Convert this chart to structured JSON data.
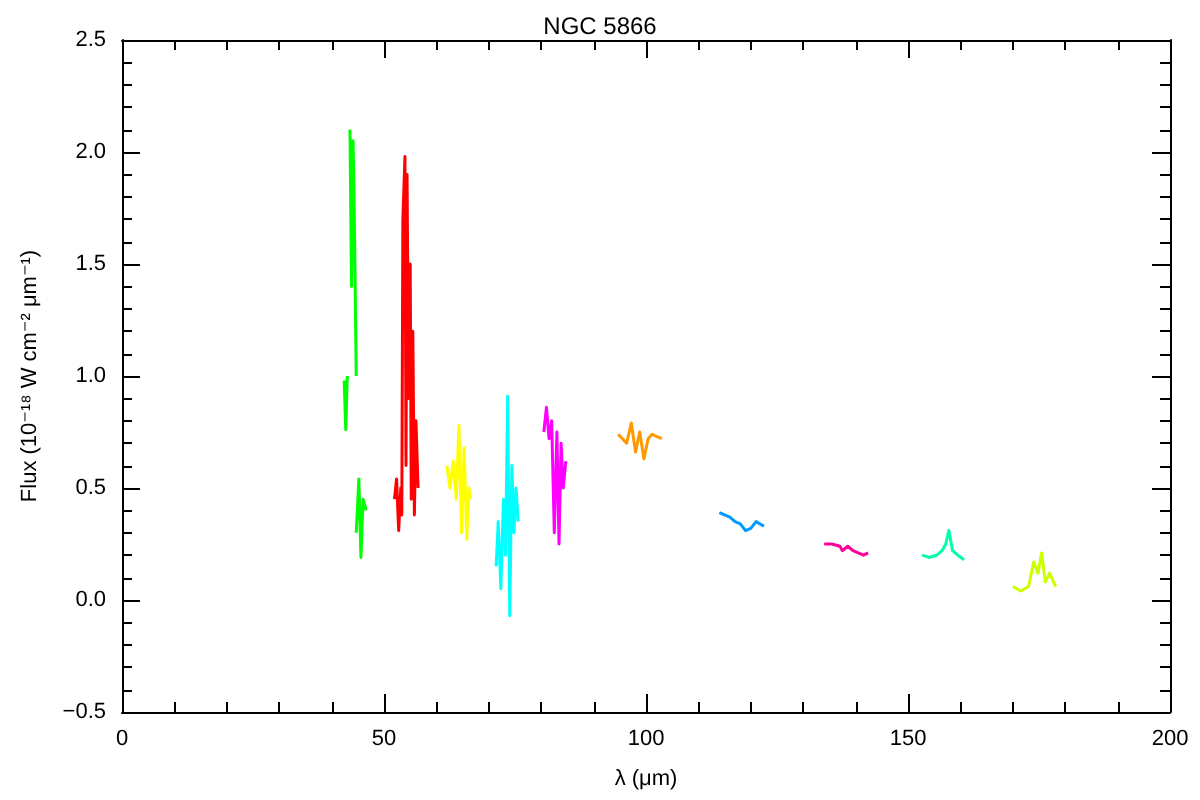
{
  "chart_data": {
    "type": "line",
    "title": "NGC 5866",
    "xlabel": "λ (μm)",
    "ylabel": "Flux (10⁻¹⁸ W cm⁻² μm⁻¹)",
    "xlim": [
      0,
      200
    ],
    "xticks": [
      0,
      {
        "value": 10,
        "label": null
      },
      {
        "value": 20,
        "label": null
      },
      {
        "value": 30,
        "label": null
      },
      {
        "value": 40,
        "label": null
      },
      50,
      {
        "value": 60,
        "label": null
      },
      {
        "value": 70,
        "label": null
      },
      {
        "value": 80,
        "label": null
      },
      {
        "value": 90,
        "label": null
      },
      100,
      {
        "value": 110,
        "label": null
      },
      {
        "value": 120,
        "label": null
      },
      {
        "value": 130,
        "label": null
      },
      {
        "value": 140,
        "label": null
      },
      150,
      {
        "value": 160,
        "label": null
      },
      {
        "value": 170,
        "label": null
      },
      {
        "value": 180,
        "label": null
      },
      {
        "value": 190,
        "label": null
      },
      200
    ],
    "ylim": [
      -0.5,
      2.5
    ],
    "yticks": [
      {
        "value": -0.5,
        "label": "−0.5"
      },
      {
        "value": -0.4,
        "label": null
      },
      {
        "value": -0.3,
        "label": null
      },
      {
        "value": -0.2,
        "label": null
      },
      {
        "value": -0.1,
        "label": null
      },
      {
        "value": 0,
        "label": "0.0"
      },
      {
        "value": 0.1,
        "label": null
      },
      {
        "value": 0.2,
        "label": null
      },
      {
        "value": 0.3,
        "label": null
      },
      {
        "value": 0.4,
        "label": null
      },
      {
        "value": 0.5,
        "label": "0.5"
      },
      {
        "value": 0.6,
        "label": null
      },
      {
        "value": 0.7,
        "label": null
      },
      {
        "value": 0.8,
        "label": null
      },
      {
        "value": 0.9,
        "label": null
      },
      {
        "value": 1,
        "label": "1.0"
      },
      {
        "value": 1.1,
        "label": null
      },
      {
        "value": 1.2,
        "label": null
      },
      {
        "value": 1.3,
        "label": null
      },
      {
        "value": 1.4,
        "label": null
      },
      {
        "value": 1.5,
        "label": "1.5"
      },
      {
        "value": 1.6,
        "label": null
      },
      {
        "value": 1.7,
        "label": null
      },
      {
        "value": 1.8,
        "label": null
      },
      {
        "value": 1.9,
        "label": null
      },
      {
        "value": 2,
        "label": "2.0"
      },
      {
        "value": 2.1,
        "label": null
      },
      {
        "value": 2.2,
        "label": null
      },
      {
        "value": 2.3,
        "label": null
      },
      {
        "value": 2.4,
        "label": null
      },
      {
        "value": 2.5,
        "label": "2.5"
      }
    ],
    "grid": false,
    "marker": "none",
    "line_style": "solid",
    "series": [
      {
        "color": "#00ff00",
        "x": [
          42.4,
          42.7,
          43.0
        ],
        "values": [
          0.98,
          0.76,
          1.0
        ]
      },
      {
        "color": "#00ff00",
        "x": [
          43.5,
          43.8,
          44.1,
          44.4,
          44.7
        ],
        "values": [
          2.1,
          1.4,
          2.05,
          1.6,
          1.0
        ]
      },
      {
        "color": "#00ff00",
        "x": [
          44.7,
          45.2,
          45.6,
          46.0,
          46.6
        ],
        "values": [
          0.3,
          0.54,
          0.19,
          0.45,
          0.4
        ]
      },
      {
        "color": "#ff0000",
        "x": [
          52.0,
          52.4,
          52.8,
          53.2,
          53.4,
          53.6,
          54.0,
          54.2,
          54.4,
          54.7,
          55.0,
          55.2,
          55.5,
          55.8,
          56.1,
          56.5
        ],
        "values": [
          0.45,
          0.54,
          0.31,
          0.5,
          0.38,
          1.7,
          1.98,
          0.6,
          1.9,
          0.9,
          1.5,
          0.45,
          1.2,
          0.38,
          0.8,
          0.5
        ]
      },
      {
        "color": "#ffff00",
        "x": [
          62,
          62.6,
          63.2,
          63.8,
          64.3,
          64.8,
          65.3,
          65.8,
          66.2,
          66.5
        ],
        "values": [
          0.6,
          0.5,
          0.62,
          0.45,
          0.78,
          0.3,
          0.68,
          0.27,
          0.5,
          0.45
        ]
      },
      {
        "color": "#00ffff",
        "x": [
          71.4,
          71.8,
          72.3,
          72.8,
          73.2,
          73.6,
          74.0,
          74.4,
          74.8,
          75.2,
          75.6
        ],
        "values": [
          0.15,
          0.35,
          0.05,
          0.45,
          0.2,
          0.91,
          -0.07,
          0.6,
          0.3,
          0.5,
          0.35
        ]
      },
      {
        "color": "#ff00ff",
        "x": [
          80.5,
          81,
          81.5,
          82,
          82.5,
          83,
          83.4,
          83.8,
          84.2,
          84.7
        ],
        "values": [
          0.75,
          0.86,
          0.72,
          0.8,
          0.3,
          0.75,
          0.25,
          0.7,
          0.5,
          0.62
        ]
      },
      {
        "color": "#ff9900",
        "x": [
          94.7,
          95.5,
          96.3,
          97.2,
          98,
          98.8,
          99.6,
          100.4,
          101.2,
          102,
          103
        ],
        "values": [
          0.74,
          0.72,
          0.7,
          0.79,
          0.66,
          0.75,
          0.63,
          0.72,
          0.74,
          0.73,
          0.72
        ]
      },
      {
        "color": "#0099ff",
        "x": [
          114,
          115,
          116,
          117,
          118,
          119,
          120,
          121,
          122.5
        ],
        "values": [
          0.39,
          0.38,
          0.37,
          0.35,
          0.34,
          0.31,
          0.32,
          0.35,
          0.33
        ]
      },
      {
        "color": "#ff0099",
        "x": [
          134,
          135.5,
          137,
          137.5,
          138.5,
          139.5,
          140.5,
          141.5,
          142.4
        ],
        "values": [
          0.25,
          0.25,
          0.24,
          0.22,
          0.24,
          0.22,
          0.21,
          0.2,
          0.21
        ]
      },
      {
        "color": "#00ffaa",
        "x": [
          152.7,
          154,
          155.5,
          156.5,
          157.2,
          157.8,
          158.5,
          159.5,
          160.7
        ],
        "values": [
          0.2,
          0.19,
          0.2,
          0.22,
          0.25,
          0.31,
          0.22,
          0.2,
          0.18
        ]
      },
      {
        "color": "#ccff00",
        "x": [
          170,
          171.5,
          173,
          174,
          174.8,
          175.5,
          176.2,
          177,
          178.2
        ],
        "values": [
          0.06,
          0.04,
          0.06,
          0.17,
          0.12,
          0.21,
          0.08,
          0.12,
          0.06
        ]
      }
    ]
  }
}
